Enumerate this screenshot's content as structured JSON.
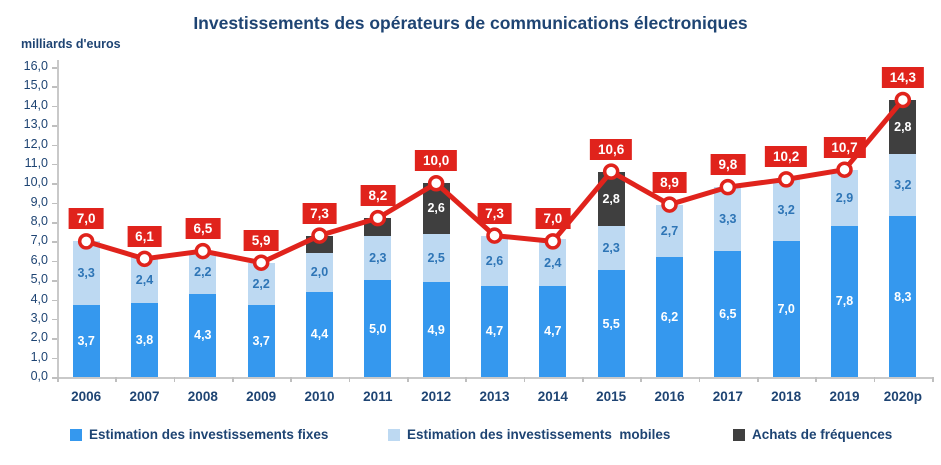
{
  "title": "Investissements des opérateurs de communications électroniques",
  "y_axis_title": "milliards d'euros",
  "colors": {
    "bar_fixed": "#3598EE",
    "bar_mobile": "#BDD9F2",
    "bar_frequencies": "#3F3F3F",
    "total_line": "#E0231C",
    "navy_text": "#1E4473",
    "mobile_label_text": "#2E75B6",
    "axis_gray": "#BFBFBF"
  },
  "chart_data": {
    "type": "bar",
    "subtype": "stacked-bars-with-total-line",
    "title": "Investissements des opérateurs de communications électroniques",
    "ylabel": "milliards d'euros",
    "xlabel": "",
    "ylim": [
      0,
      16
    ],
    "ytick_step": 1,
    "grid": false,
    "legend_position": "bottom",
    "y_tick_labels": [
      "0,0",
      "1,0",
      "2,0",
      "3,0",
      "4,0",
      "5,0",
      "6,0",
      "7,0",
      "8,0",
      "9,0",
      "10,0",
      "11,0",
      "12,0",
      "13,0",
      "14,0",
      "15,0",
      "16,0"
    ],
    "categories": [
      "2006",
      "2007",
      "2008",
      "2009",
      "2010",
      "2011",
      "2012",
      "2013",
      "2014",
      "2015",
      "2016",
      "2017",
      "2018",
      "2019",
      "2020p"
    ],
    "series": [
      {
        "name": "Estimation des investissements fixes",
        "type": "bar",
        "color": "#3598EE",
        "values": [
          3.7,
          3.8,
          4.3,
          3.7,
          4.4,
          5.0,
          4.9,
          4.7,
          4.7,
          5.5,
          6.2,
          6.5,
          7.0,
          7.8,
          8.3
        ],
        "labels": [
          "3,7",
          "3,8",
          "4,3",
          "3,7",
          "4,4",
          "5,0",
          "4,9",
          "4,7",
          "4,7",
          "5,5",
          "6,2",
          "6,5",
          "7,0",
          "7,8",
          "8,3"
        ]
      },
      {
        "name": "Estimation des investissements  mobiles",
        "type": "bar",
        "color": "#BDD9F2",
        "values": [
          3.3,
          2.4,
          2.2,
          2.2,
          2.0,
          2.3,
          2.5,
          2.6,
          2.4,
          2.3,
          2.7,
          3.3,
          3.2,
          2.9,
          3.2
        ],
        "labels": [
          "3,3",
          "2,4",
          "2,2",
          "2,2",
          "2,0",
          "2,3",
          "2,5",
          "2,6",
          "2,4",
          "2,3",
          "2,7",
          "3,3",
          "3,2",
          "2,9",
          "3,2"
        ]
      },
      {
        "name": "Achats de fréquences",
        "type": "bar",
        "color": "#3F3F3F",
        "values": [
          0,
          0,
          0,
          0,
          0.9,
          0.9,
          2.6,
          0,
          0,
          2.8,
          0,
          0,
          0,
          0,
          2.8
        ],
        "labels": [
          "",
          "",
          "",
          "",
          "",
          "",
          "2,6",
          "",
          "",
          "2,8",
          "",
          "",
          "",
          "",
          "2,8"
        ]
      },
      {
        "name": "Total",
        "type": "line",
        "color": "#E0231C",
        "values": [
          7.0,
          6.1,
          6.5,
          5.9,
          7.3,
          8.2,
          10.0,
          7.3,
          7.0,
          10.6,
          8.9,
          9.8,
          10.2,
          10.7,
          14.3
        ],
        "labels": [
          "7,0",
          "6,1",
          "6,5",
          "5,9",
          "7,3",
          "8,2",
          "10,0",
          "7,3",
          "7,0",
          "10,6",
          "8,9",
          "9,8",
          "10,2",
          "10,7",
          "14,3"
        ]
      }
    ],
    "legend_items": [
      "Estimation des investissements fixes",
      "Estimation des investissements  mobiles",
      "Achats de fréquences"
    ]
  }
}
